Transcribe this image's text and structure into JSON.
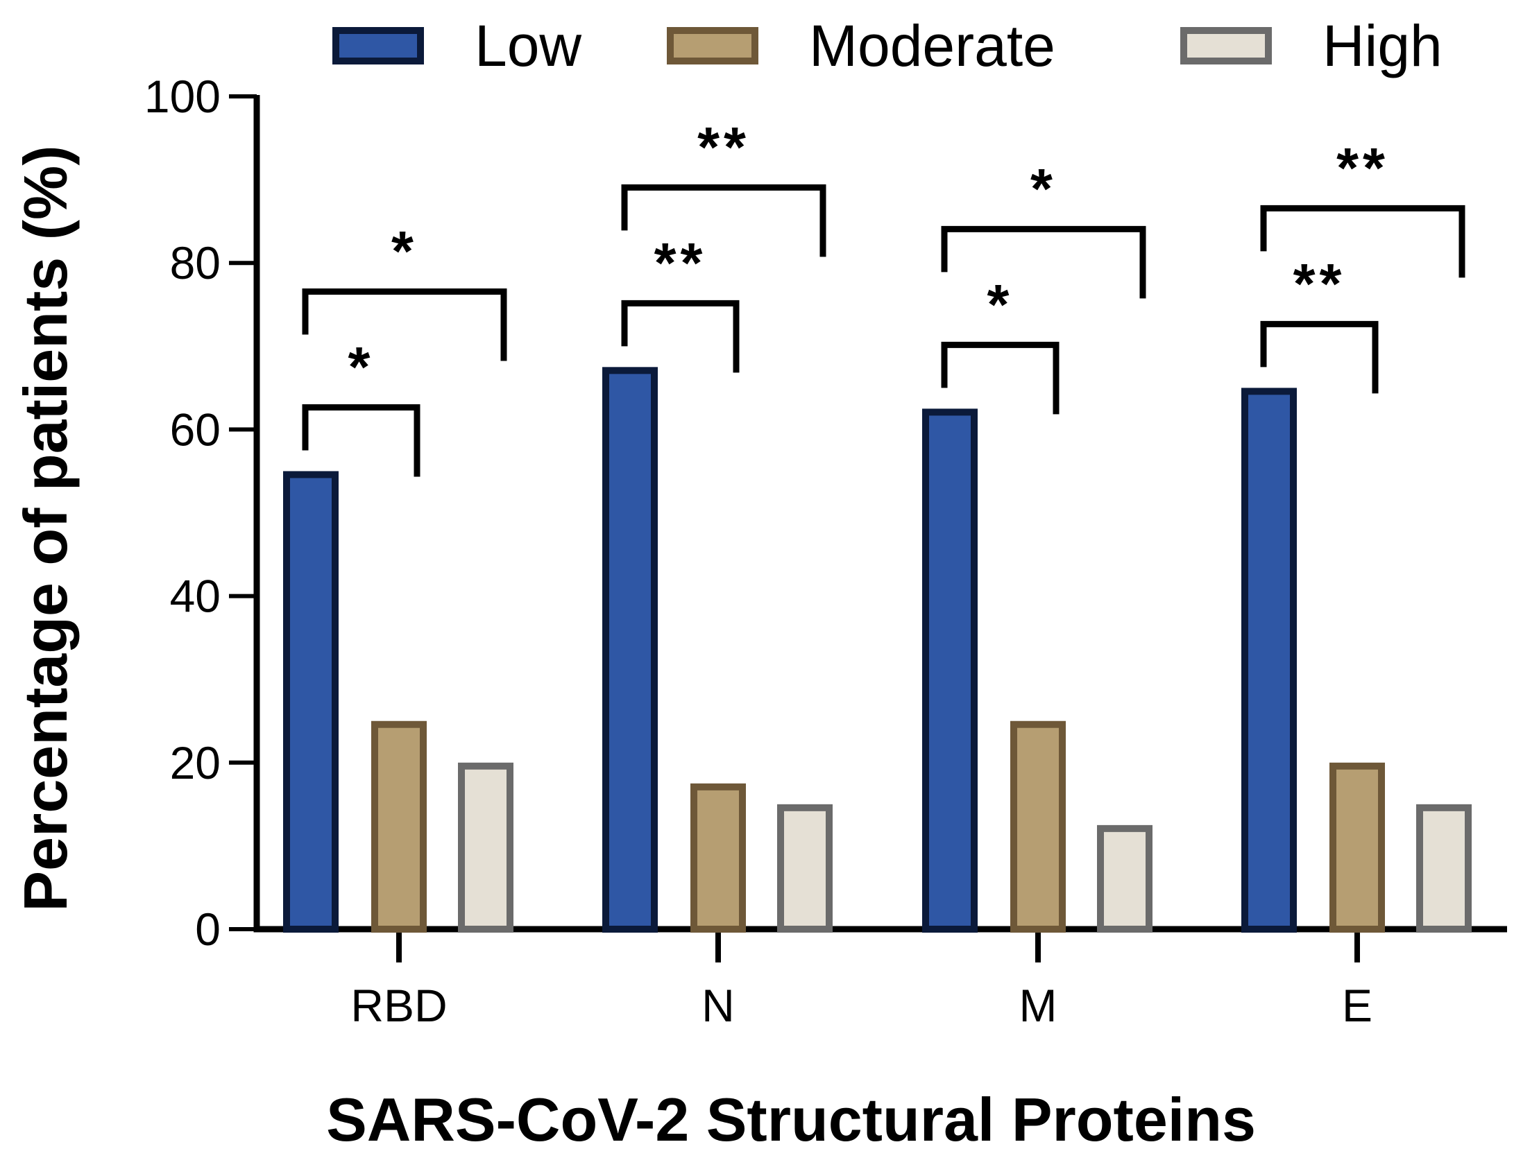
{
  "chart_data": {
    "type": "bar",
    "title": "",
    "xlabel": "SARS-CoV-2 Structural Proteins",
    "ylabel": "Percentage of patients (%)",
    "ylim": [
      0,
      100
    ],
    "yticks": [
      0,
      20,
      40,
      60,
      80,
      100
    ],
    "categories": [
      "RBD",
      "N",
      "M",
      "E"
    ],
    "series": [
      {
        "name": "Low",
        "fill": "#2f57a5",
        "stroke": "#0b1a3a",
        "values": [
          55,
          67.5,
          62.5,
          65
        ]
      },
      {
        "name": "Moderate",
        "fill": "#b69e72",
        "stroke": "#6e5838",
        "values": [
          25,
          17.5,
          25,
          20
        ]
      },
      {
        "name": "High",
        "fill": "#e5e0d5",
        "stroke": "#6b6b6b",
        "values": [
          20,
          15,
          12.5,
          15
        ]
      }
    ],
    "legend_position": "top",
    "significance": [
      {
        "category": "RBD",
        "from": "Low",
        "to": "Moderate",
        "label": "*"
      },
      {
        "category": "RBD",
        "from": "Low",
        "to": "High",
        "label": "*"
      },
      {
        "category": "N",
        "from": "Low",
        "to": "Moderate",
        "label": "**"
      },
      {
        "category": "N",
        "from": "Low",
        "to": "High",
        "label": "**"
      },
      {
        "category": "M",
        "from": "Low",
        "to": "Moderate",
        "label": "*"
      },
      {
        "category": "M",
        "from": "Low",
        "to": "High",
        "label": "*"
      },
      {
        "category": "E",
        "from": "Low",
        "to": "Moderate",
        "label": "**"
      },
      {
        "category": "E",
        "from": "Low",
        "to": "High",
        "label": "**"
      }
    ]
  }
}
